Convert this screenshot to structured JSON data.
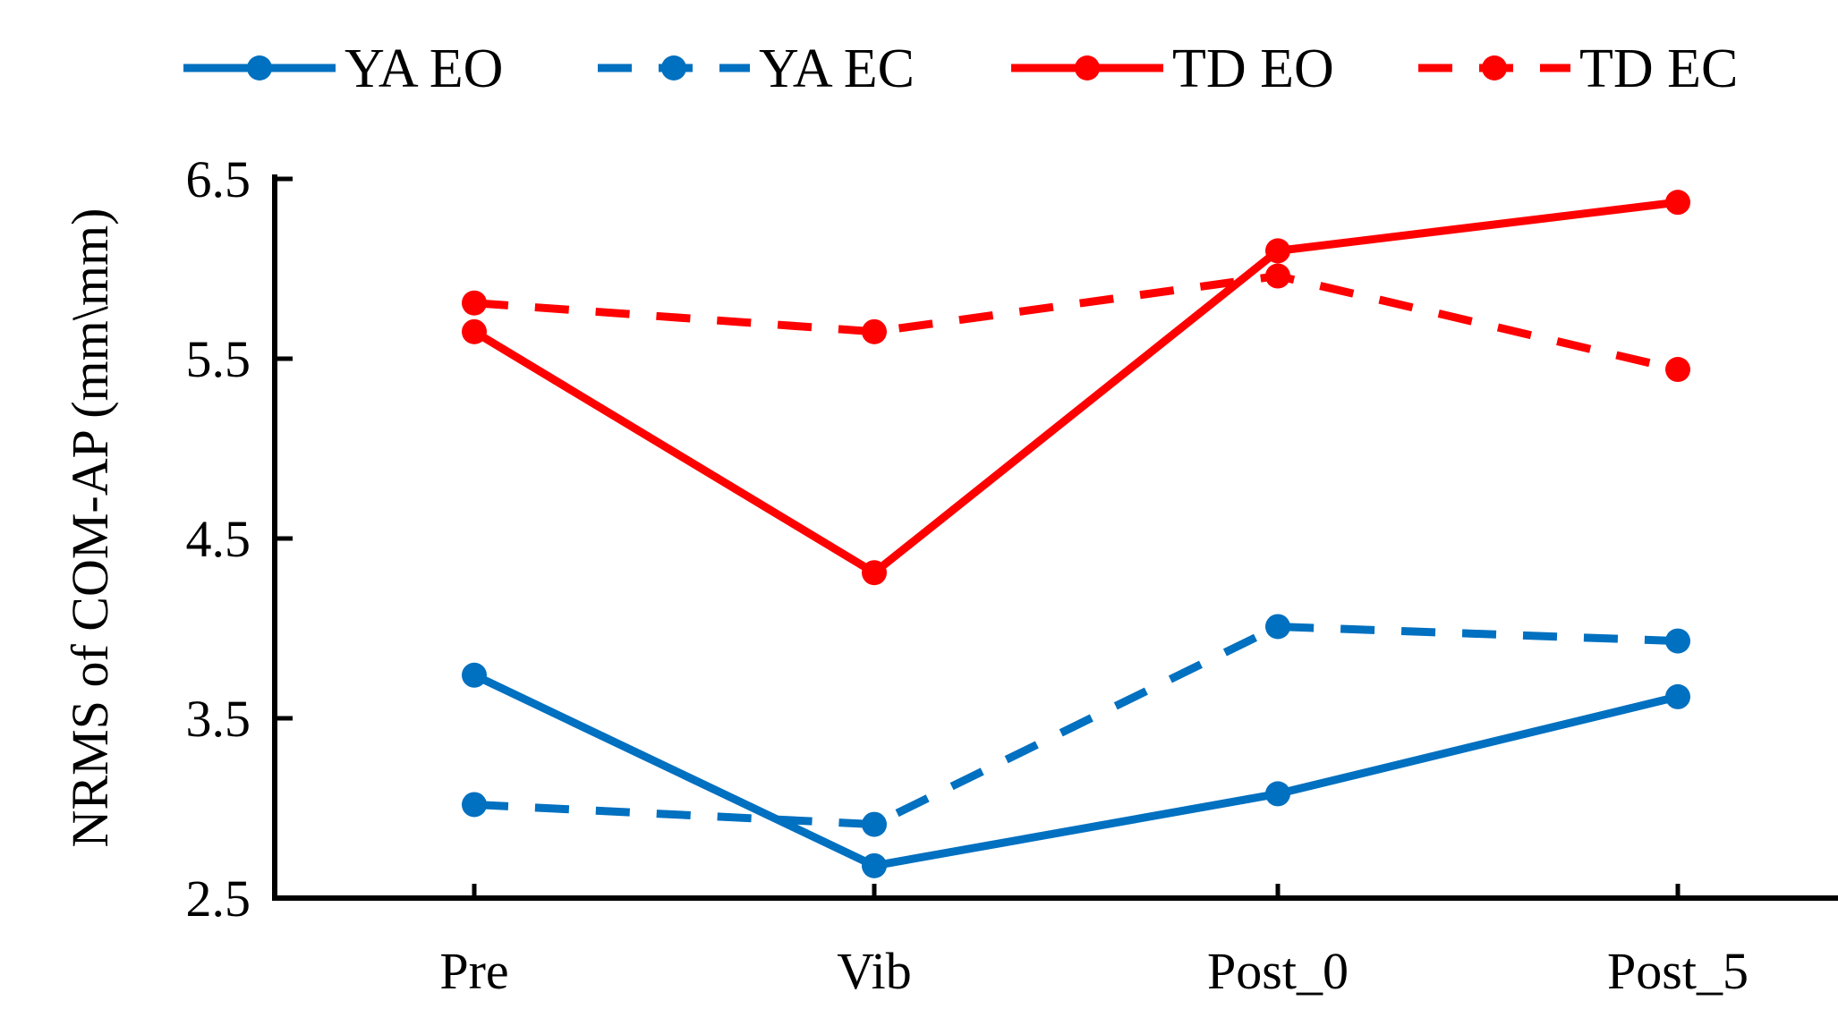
{
  "chart_data": {
    "type": "line",
    "title": "",
    "xlabel": "",
    "ylabel": "NRMS of COM-AP (mm\\mm)",
    "categories": [
      "Pre",
      "Vib",
      "Post_0",
      "Post_5"
    ],
    "ylim": [
      2.5,
      6.5
    ],
    "yticks": [
      2.5,
      3.5,
      4.5,
      5.5,
      6.5
    ],
    "ytick_labels": [
      "2.5",
      "3.5",
      "4.5",
      "5.5",
      "6.5"
    ],
    "grid": false,
    "legend_position": "top",
    "series": [
      {
        "name": "YA EO",
        "values": [
          3.74,
          2.68,
          3.08,
          3.62
        ],
        "color": "#0070C0",
        "dash": "solid"
      },
      {
        "name": "YA EC",
        "values": [
          3.02,
          2.91,
          4.01,
          3.93
        ],
        "color": "#0070C0",
        "dash": "dashed"
      },
      {
        "name": "TD EO",
        "values": [
          5.65,
          4.31,
          6.1,
          6.37
        ],
        "color": "#FF0000",
        "dash": "solid"
      },
      {
        "name": "TD EC",
        "values": [
          5.81,
          5.65,
          5.96,
          5.44
        ],
        "color": "#FF0000",
        "dash": "dashed"
      }
    ]
  }
}
